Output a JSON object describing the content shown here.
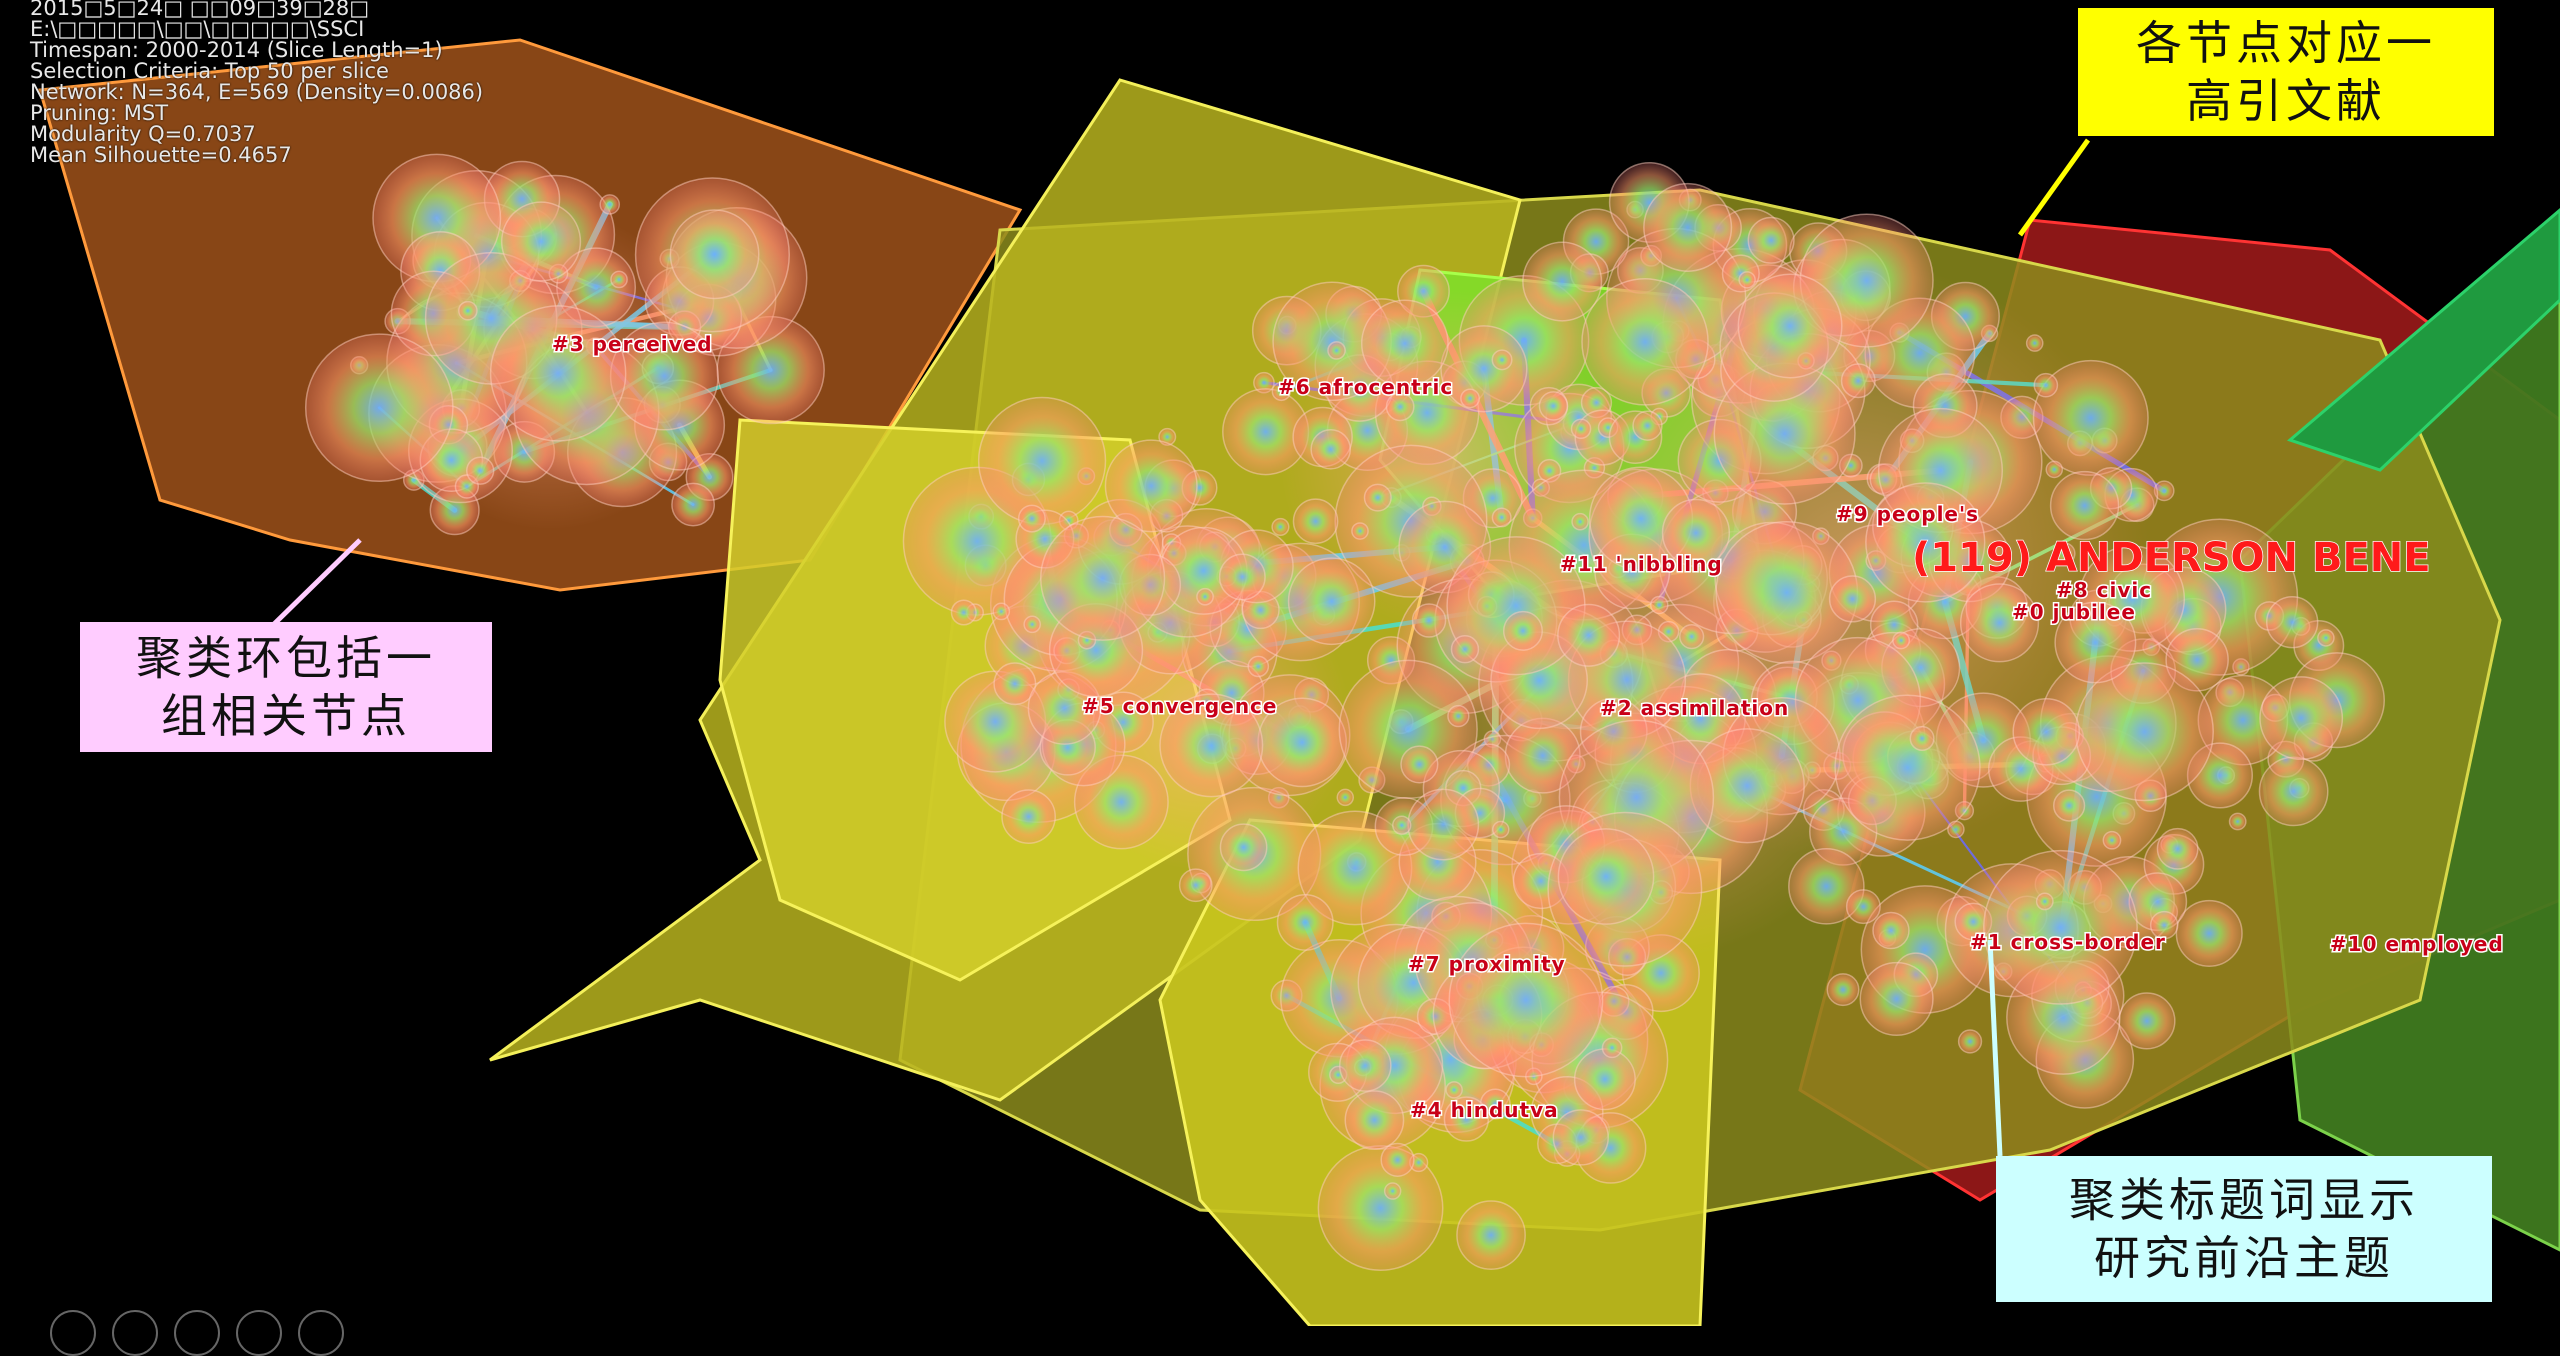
{
  "header_info": [
    "2015□5□24□ □□09□39□28□",
    "E:\\□□□□□\\□□\\□□□□□\\SSCI",
    "Timespan: 2000-2014 (Slice Length=1)",
    "Selection Criteria: Top 50 per slice",
    "Network: N=364, E=569 (Density=0.0086)",
    "Pruning: MST",
    "Modularity Q=0.7037",
    "Mean Silhouette=0.4657"
  ],
  "callouts": {
    "node": "各节点对应一\n高引文献",
    "ring": "聚类环包括一\n组相关节点",
    "label": "聚类标题词显示\n研究前沿主题"
  },
  "cluster_labels": {
    "c3": "#3  perceived",
    "c6": "#6  afrocentric",
    "c9": "#9  people's",
    "c11": "#11  'nibbling",
    "c8": "#8  civic",
    "c0": "#0  jubilee",
    "c5": "#5  convergence",
    "c2": "#2  assimilation",
    "c1": "#1  cross-border",
    "c10": "#10  employed",
    "c7": "#7  proximity",
    "c4": "#4  hindutva"
  },
  "highlight_node_label": "(119) ANDERSON BENE",
  "colors": {
    "background": "#000000",
    "callout_node_bg": "#ffff00",
    "callout_ring_bg": "#ffccff",
    "callout_label_bg": "#ccffff",
    "cluster_label_text": "#c80018",
    "highlight_text": "#ff1a1a"
  }
}
